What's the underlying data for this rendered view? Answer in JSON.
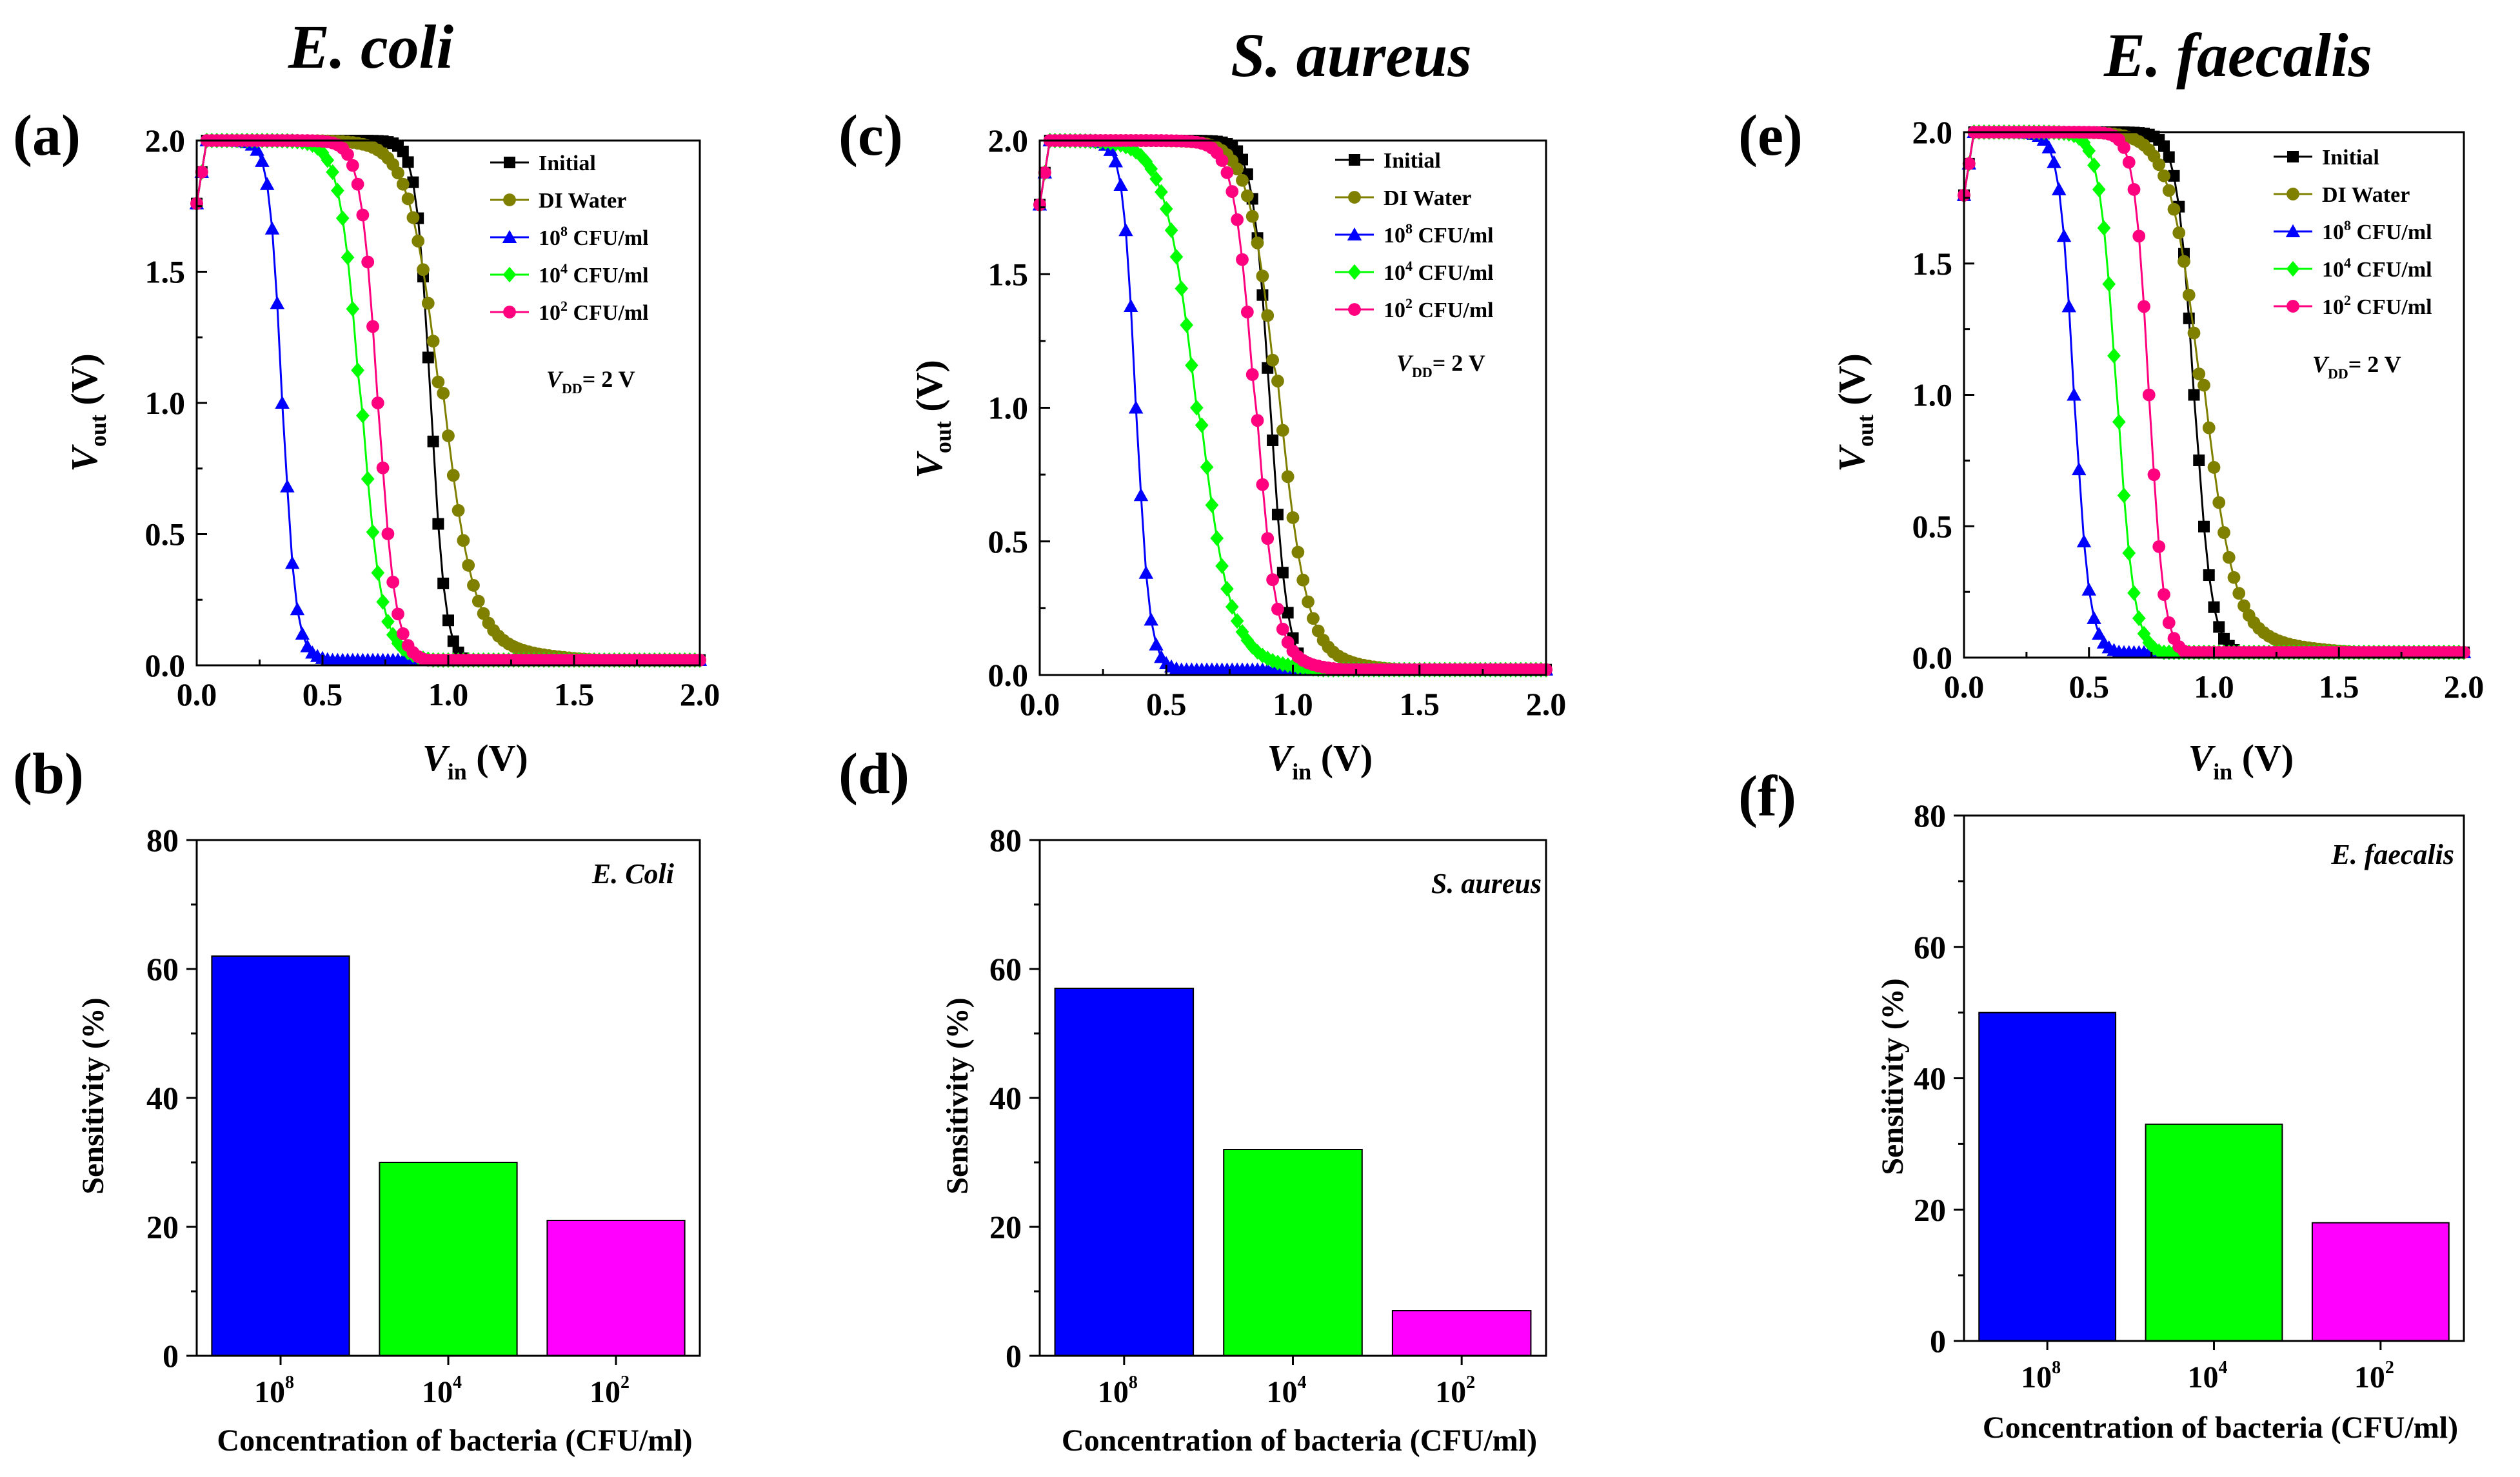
{
  "figure": {
    "organisms": [
      "E. coli",
      "S. aureus",
      "E. faecalis"
    ],
    "panel_labels": [
      "(a)",
      "(b)",
      "(c)",
      "(d)",
      "(e)",
      "(f)"
    ]
  },
  "common": {
    "transfer": {
      "xlabel_main": "V",
      "xlabel_sub": "in",
      "xlabel_unit": "(V)",
      "ylabel_main": "V",
      "ylabel_sub": "out",
      "ylabel_unit": "(V)",
      "x_ticks": [
        "0.0",
        "0.5",
        "1.0",
        "1.5",
        "2.0"
      ],
      "y_ticks": [
        "0.0",
        "0.5",
        "1.0",
        "1.5",
        "2.0"
      ],
      "annotation_main": "V",
      "annotation_sub": "DD",
      "annotation_rest": "= 2 V"
    },
    "bars": {
      "xlabel": "Concentration of bacteria (CFU/ml)",
      "ylabel": "Sensitivity (%)",
      "y_ticks": [
        "0",
        "20",
        "40",
        "60",
        "80"
      ],
      "category_base": "10",
      "category_exps": [
        "8",
        "4",
        "2"
      ]
    },
    "legend": [
      {
        "label": "Initial",
        "base": "",
        "sup": "",
        "color": "#000000",
        "marker": "square"
      },
      {
        "label": "DI Water",
        "base": "",
        "sup": "",
        "color": "#808000",
        "marker": "circle"
      },
      {
        "label": "CFU/ml",
        "base": "10",
        "sup": "8",
        "color": "#0000ff",
        "marker": "triangle"
      },
      {
        "label": "CFU/ml",
        "base": "10",
        "sup": "4",
        "color": "#00ff00",
        "marker": "diamond"
      },
      {
        "label": "CFU/ml",
        "base": "10",
        "sup": "2",
        "color": "#ff007f",
        "marker": "circle"
      }
    ]
  },
  "chart_data": [
    {
      "type": "line",
      "panel": "(a)",
      "title": "E. coli",
      "xlabel": "Vin (V)",
      "ylabel": "Vout (V)",
      "xlim": [
        0,
        2
      ],
      "ylim": [
        0,
        2
      ],
      "annotation": "VDD = 2 V",
      "series": [
        {
          "name": "Initial",
          "color": "#000000",
          "marker": "square",
          "vm": 0.93,
          "k": 35,
          "tail": 0.03,
          "tw": 0.08
        },
        {
          "name": "DI Water",
          "color": "#808000",
          "marker": "circle",
          "vm": 0.97,
          "k": 16,
          "tail": 0.12,
          "tw": 0.35
        },
        {
          "name": "10^8 CFU/ml",
          "color": "#0000ff",
          "marker": "triangle",
          "vm": 0.34,
          "k": 40,
          "tail": 0.07,
          "tw": 0.15
        },
        {
          "name": "10^4 CFU/ml",
          "color": "#00ff00",
          "marker": "diamond",
          "vm": 0.65,
          "k": 25,
          "tail": 0.08,
          "tw": 0.2
        },
        {
          "name": "10^2 CFU/ml",
          "color": "#ff007f",
          "marker": "circle",
          "vm": 0.72,
          "k": 30,
          "tail": 0.05,
          "tw": 0.15
        }
      ]
    },
    {
      "type": "bar",
      "panel": "(b)",
      "inset_label": "E. Coli",
      "categories": [
        "10^8",
        "10^4",
        "10^2"
      ],
      "values": [
        62,
        30,
        21
      ],
      "colors": [
        "#0000ff",
        "#00ff00",
        "#ff00ff"
      ],
      "xlabel": "Concentration of bacteria (CFU/ml)",
      "ylabel": "Sensitivity (%)",
      "ylim": [
        0,
        80
      ]
    },
    {
      "type": "line",
      "panel": "(c)",
      "title": "S. aureus",
      "xlabel": "Vin (V)",
      "ylabel": "Vout (V)",
      "xlim": [
        0,
        2
      ],
      "ylim": [
        0,
        2
      ],
      "annotation": "VDD = 2 V",
      "series": [
        {
          "name": "Initial",
          "color": "#000000",
          "marker": "square",
          "vm": 0.91,
          "k": 30,
          "tail": 0.03,
          "tw": 0.1
        },
        {
          "name": "DI Water",
          "color": "#808000",
          "marker": "circle",
          "vm": 0.94,
          "k": 18,
          "tail": 0.1,
          "tw": 0.3
        },
        {
          "name": "10^8 CFU/ml",
          "color": "#0000ff",
          "marker": "triangle",
          "vm": 0.38,
          "k": 40,
          "tail": 0.06,
          "tw": 0.15
        },
        {
          "name": "10^4 CFU/ml",
          "color": "#00ff00",
          "marker": "diamond",
          "vm": 0.62,
          "k": 16,
          "tail": 0.1,
          "tw": 0.3
        },
        {
          "name": "10^2 CFU/ml",
          "color": "#ff007f",
          "marker": "circle",
          "vm": 0.85,
          "k": 25,
          "tail": 0.08,
          "tw": 0.25
        }
      ]
    },
    {
      "type": "bar",
      "panel": "(d)",
      "inset_label": "S. aureus",
      "categories": [
        "10^8",
        "10^4",
        "10^2"
      ],
      "values": [
        57,
        32,
        7
      ],
      "colors": [
        "#0000ff",
        "#00ff00",
        "#ff00ff"
      ],
      "xlabel": "Concentration of bacteria (CFU/ml)",
      "ylabel": "Sensitivity (%)",
      "ylim": [
        0,
        80
      ]
    },
    {
      "type": "line",
      "panel": "(e)",
      "title": "E. faecalis",
      "xlabel": "Vin (V)",
      "ylabel": "Vout (V)",
      "xlim": [
        0,
        2
      ],
      "ylim": [
        0,
        2
      ],
      "annotation": "VDD = 2 V",
      "series": [
        {
          "name": "Initial",
          "color": "#000000",
          "marker": "square",
          "vm": 0.92,
          "k": 30,
          "tail": 0.05,
          "tw": 0.12
        },
        {
          "name": "DI Water",
          "color": "#808000",
          "marker": "circle",
          "vm": 0.95,
          "k": 16,
          "tail": 0.12,
          "tw": 0.35
        },
        {
          "name": "10^8 CFU/ml",
          "color": "#0000ff",
          "marker": "triangle",
          "vm": 0.44,
          "k": 35,
          "tail": 0.06,
          "tw": 0.15
        },
        {
          "name": "10^4 CFU/ml",
          "color": "#00ff00",
          "marker": "diamond",
          "vm": 0.61,
          "k": 30,
          "tail": 0.05,
          "tw": 0.12
        },
        {
          "name": "10^2 CFU/ml",
          "color": "#ff007f",
          "marker": "circle",
          "vm": 0.74,
          "k": 35,
          "tail": 0.04,
          "tw": 0.1
        }
      ]
    },
    {
      "type": "bar",
      "panel": "(f)",
      "inset_label": "E. faecalis",
      "categories": [
        "10^8",
        "10^4",
        "10^2"
      ],
      "values": [
        50,
        33,
        18
      ],
      "colors": [
        "#0000ff",
        "#00ff00",
        "#ff00ff"
      ],
      "xlabel": "Concentration of bacteria (CFU/ml)",
      "ylabel": "Sensitivity (%)",
      "ylim": [
        0,
        80
      ]
    }
  ]
}
